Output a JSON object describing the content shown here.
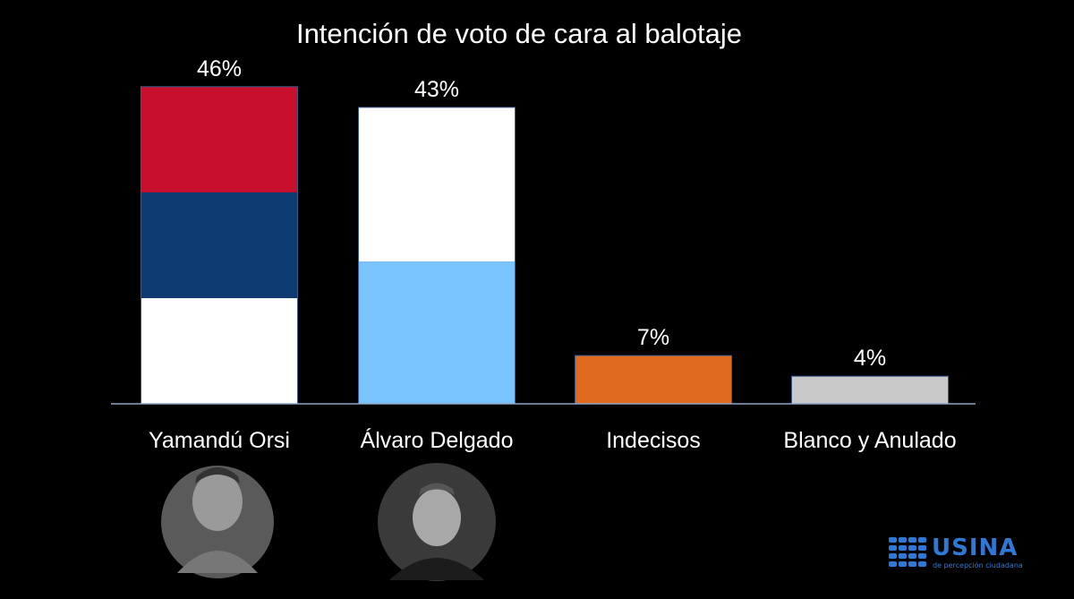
{
  "chart_data": {
    "type": "bar",
    "title": "Intención de voto de cara al balotaje",
    "categories": [
      "Yamandú Orsi",
      "Álvaro Delgado",
      "Indecisos",
      "Blanco y Anulado"
    ],
    "values": [
      46,
      43,
      7,
      4
    ],
    "value_labels": [
      "46%",
      "43%",
      "7%",
      "4%"
    ],
    "ylim": [
      0,
      50
    ],
    "grid": false,
    "legend": "none",
    "bar_segments": [
      [
        {
          "share": 0.3333,
          "color": "#ffffff"
        },
        {
          "share": 0.3333,
          "color": "#0e3c72"
        },
        {
          "share": 0.3334,
          "color": "#c8102e"
        }
      ],
      [
        {
          "share": 0.48,
          "color": "#79c4ff"
        },
        {
          "share": 0.52,
          "color": "#ffffff"
        }
      ],
      [
        {
          "share": 1.0,
          "color": "#e06b1f"
        }
      ],
      [
        {
          "share": 1.0,
          "color": "#c8c8c8"
        }
      ]
    ]
  },
  "candidates": [
    {
      "photo_icon": "candidate-photo-orsi"
    },
    {
      "photo_icon": "candidate-photo-delgado"
    }
  ],
  "logo": {
    "name": "USINA",
    "tagline": "de percepción ciudadana",
    "color": "#2f79d6"
  },
  "colors": {
    "background": "#000000",
    "axis": "#8fa6c8",
    "text": "#ffffff"
  }
}
